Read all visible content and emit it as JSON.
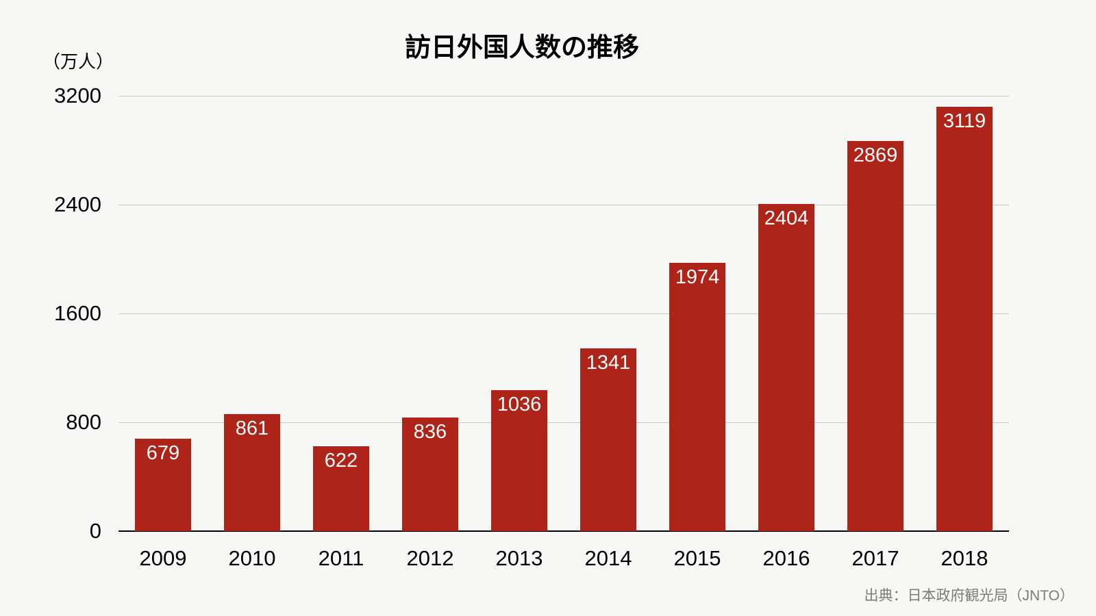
{
  "title": "訪日外国人数の推移",
  "y_unit": "（万人）",
  "source": "出典：日本政府観光局（JNTO）",
  "colors": {
    "bar": "#AE2419",
    "background": "#F7F7F5",
    "gridline": "#C6C6C4",
    "axis": "#000000",
    "value_label": "#FFFFFF",
    "source_text": "#7B7B77",
    "text": "#000000"
  },
  "chart_data": {
    "type": "bar",
    "categories": [
      "2009",
      "2010",
      "2011",
      "2012",
      "2013",
      "2014",
      "2015",
      "2016",
      "2017",
      "2018"
    ],
    "values": [
      679,
      861,
      622,
      836,
      1036,
      1341,
      1974,
      2404,
      2869,
      3119
    ],
    "title": "訪日外国人数の推移",
    "xlabel": "",
    "ylabel": "（万人）",
    "ylim": [
      0,
      3200
    ],
    "yticks": [
      0,
      800,
      1600,
      2400,
      3200
    ],
    "grid": true,
    "legend": false,
    "value_label_position": "inside-top",
    "bar_color": "#AE2419"
  }
}
